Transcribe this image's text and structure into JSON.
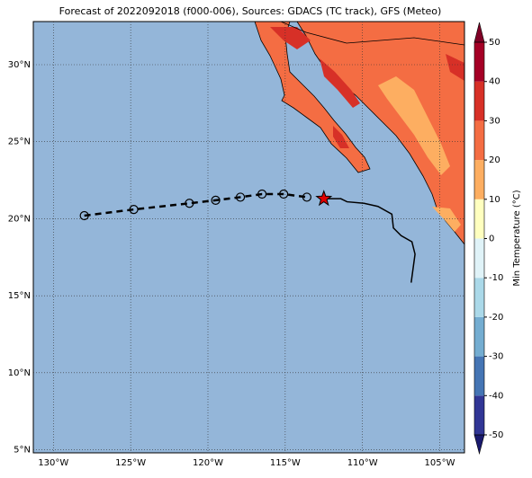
{
  "chart_data": {
    "type": "map",
    "title": "Forecast of 2022092018 (f000-006), Sources: GDACS (TC track), GFS (Meteo)",
    "xlim": [
      -131.3,
      -103.4
    ],
    "ylim": [
      4.8,
      32.8
    ],
    "xticks": [
      {
        "value": -130,
        "label": "130°W"
      },
      {
        "value": -125,
        "label": "125°W"
      },
      {
        "value": -120,
        "label": "120°W"
      },
      {
        "value": -115,
        "label": "115°W"
      },
      {
        "value": -110,
        "label": "110°W"
      },
      {
        "value": -105,
        "label": "105°W"
      }
    ],
    "yticks": [
      {
        "value": 5,
        "label": "5°N"
      },
      {
        "value": 10,
        "label": "10°N"
      },
      {
        "value": 15,
        "label": "15°N"
      },
      {
        "value": 20,
        "label": "20°N"
      },
      {
        "value": 25,
        "label": "25°N"
      },
      {
        "value": 30,
        "label": "30°N"
      }
    ],
    "grid": true,
    "forecast_track": {
      "color": "#000000",
      "x": [
        -128.0,
        -124.8,
        -121.2,
        -119.5,
        -117.9,
        -116.5,
        -115.1,
        -113.6
      ],
      "y": [
        20.2,
        20.6,
        21.0,
        21.2,
        21.4,
        21.6,
        21.6,
        21.4
      ]
    },
    "past_track": {
      "color": "#000000",
      "x": [
        -112.5,
        -111.4,
        -111.0,
        -109.9,
        -109.0,
        -108.1,
        -108.0,
        -107.5,
        -106.8,
        -106.6,
        -106.85
      ],
      "y": [
        21.3,
        21.3,
        21.1,
        21.0,
        20.8,
        20.3,
        19.4,
        18.9,
        18.5,
        17.7,
        15.85
      ]
    },
    "current_position": {
      "color": "#e00000",
      "x": -112.5,
      "y": 21.3
    },
    "colorbar": {
      "label": "Min Temperature (°C)",
      "clim": [
        -50,
        50
      ],
      "ticks": [
        -50,
        -40,
        -30,
        -20,
        -10,
        0,
        10,
        20,
        30,
        40,
        50
      ],
      "colors": [
        "#313695",
        "#4575b4",
        "#74add1",
        "#abd9e9",
        "#e0f3f8",
        "#ffffbf",
        "#fdae61",
        "#f46d43",
        "#d73027",
        "#a50026"
      ],
      "under_color": "#1a1a6e",
      "over_color": "#800026"
    }
  }
}
